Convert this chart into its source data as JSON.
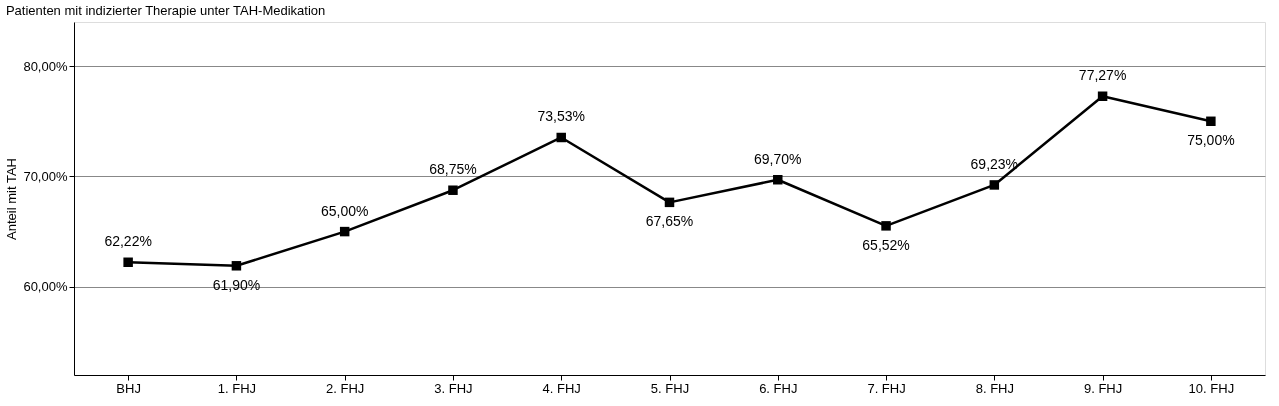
{
  "chart_data": {
    "type": "line",
    "title": "Patienten mit indizierter Therapie unter TAH-Medikation",
    "ylabel": "Anteil mit TAH",
    "categories": [
      "BHJ",
      "1. FHJ",
      "2. FHJ",
      "3. FHJ",
      "4. FHJ",
      "5. FHJ",
      "6. FHJ",
      "7. FHJ",
      "8. FHJ",
      "9. FHJ",
      "10. FHJ"
    ],
    "series": [
      {
        "color": "#000000",
        "values": [
          62.22,
          61.9,
          65.0,
          68.75,
          73.53,
          67.65,
          69.7,
          65.52,
          69.23,
          77.27,
          75.0
        ],
        "value_labels": [
          "62,22%",
          "61,90%",
          "65,00%",
          "68,75%",
          "73,53%",
          "67,65%",
          "69,70%",
          "65,52%",
          "69,23%",
          "77,27%",
          "75,00%"
        ]
      }
    ],
    "ylim": [
      52,
      84
    ],
    "yticks": [
      {
        "value": 60,
        "label": "60,00%"
      },
      {
        "value": 70,
        "label": "70,00%"
      },
      {
        "value": 80,
        "label": "80,00%"
      }
    ],
    "grid": "y",
    "marker": "square",
    "line_style": "solid"
  }
}
